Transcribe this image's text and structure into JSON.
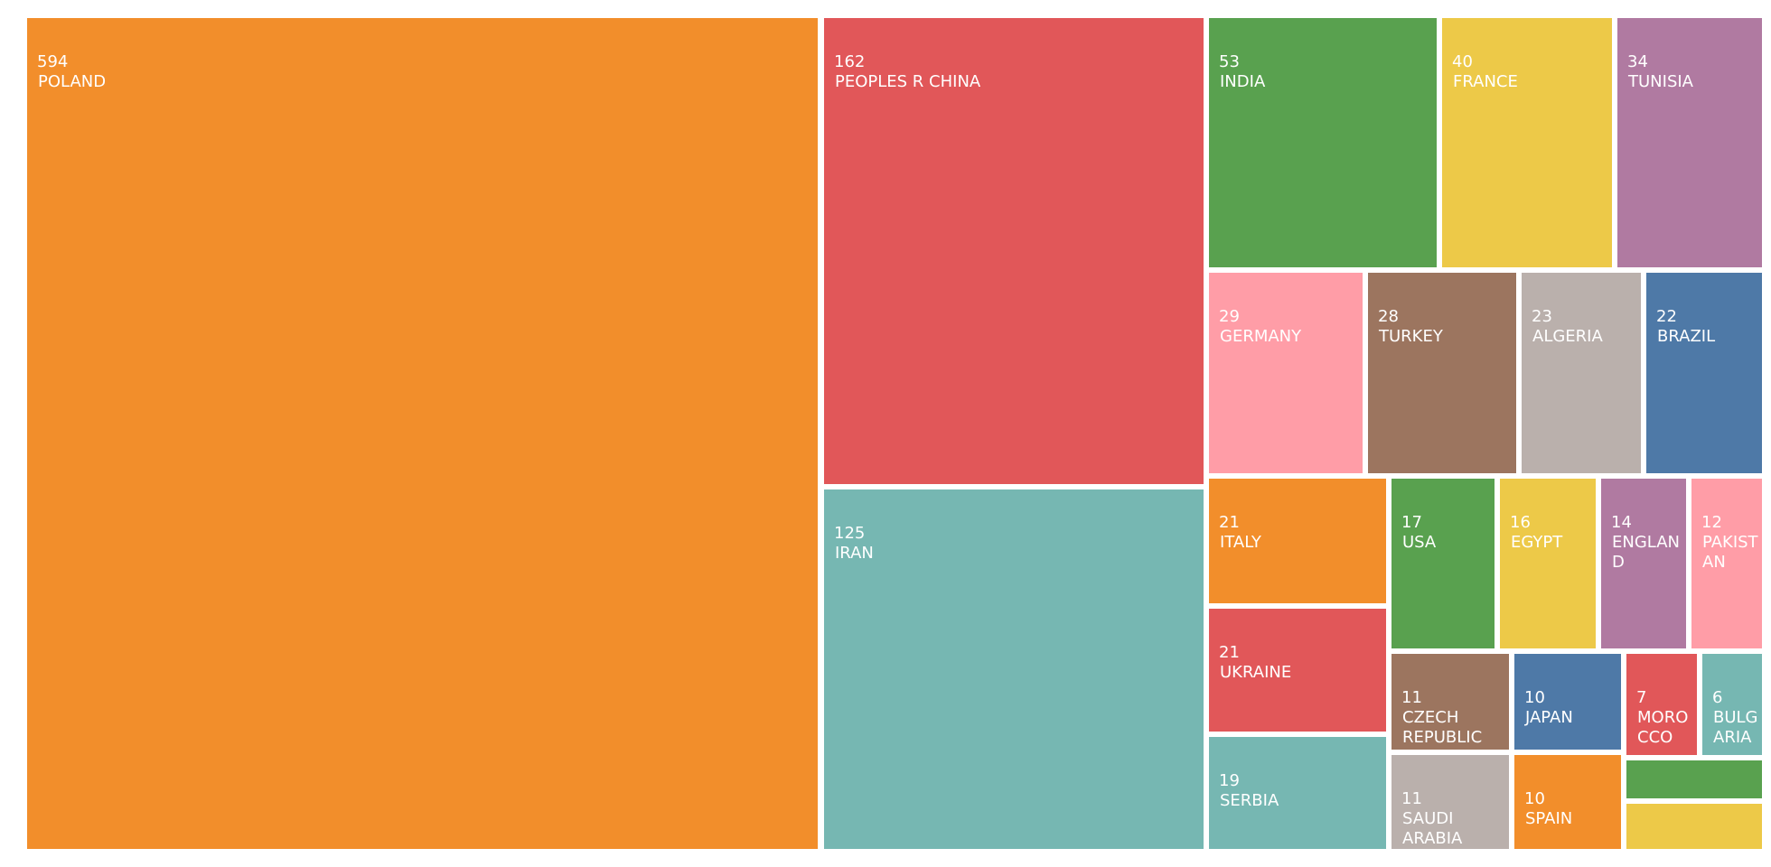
{
  "chart_data": {
    "type": "treemap",
    "title": "",
    "items": [
      {
        "name": "POLAND",
        "value": 594,
        "color": "#f28e2b"
      },
      {
        "name": "PEOPLES R CHINA",
        "value": 162,
        "color": "#e15759"
      },
      {
        "name": "IRAN",
        "value": 125,
        "color": "#76b7b2"
      },
      {
        "name": "INDIA",
        "value": 53,
        "color": "#59a14f"
      },
      {
        "name": "FRANCE",
        "value": 40,
        "color": "#edc948"
      },
      {
        "name": "TUNISIA",
        "value": 34,
        "color": "#b07aa1"
      },
      {
        "name": "GERMANY",
        "value": 29,
        "color": "#ff9da7"
      },
      {
        "name": "TURKEY",
        "value": 28,
        "color": "#9c755f"
      },
      {
        "name": "ALGERIA",
        "value": 23,
        "color": "#bab0ac"
      },
      {
        "name": "BRAZIL",
        "value": 22,
        "color": "#4e79a7"
      },
      {
        "name": "ITALY",
        "value": 21,
        "color": "#f28e2b"
      },
      {
        "name": "UKRAINE",
        "value": 21,
        "color": "#e15759"
      },
      {
        "name": "SERBIA",
        "value": 19,
        "color": "#76b7b2"
      },
      {
        "name": "USA",
        "value": 17,
        "color": "#59a14f"
      },
      {
        "name": "EGYPT",
        "value": 16,
        "color": "#edc948"
      },
      {
        "name": "ENGLAND",
        "value": 14,
        "color": "#b07aa1"
      },
      {
        "name": "PAKISTAN",
        "value": 12,
        "color": "#ff9da7"
      },
      {
        "name": "CZECH REPUBLIC",
        "value": 11,
        "color": "#9c755f"
      },
      {
        "name": "SAUDI ARABIA",
        "value": 11,
        "color": "#bab0ac"
      },
      {
        "name": "JAPAN",
        "value": 10,
        "color": "#4e79a7"
      },
      {
        "name": "SPAIN",
        "value": 10,
        "color": "#f28e2b"
      },
      {
        "name": "MOROCCO",
        "value": 7,
        "color": "#e15759"
      },
      {
        "name": "BULGARIA",
        "value": 6,
        "color": "#76b7b2"
      },
      {
        "name": "",
        "value": null,
        "color": "#59a14f"
      },
      {
        "name": "",
        "value": null,
        "color": "#edc948"
      }
    ]
  }
}
